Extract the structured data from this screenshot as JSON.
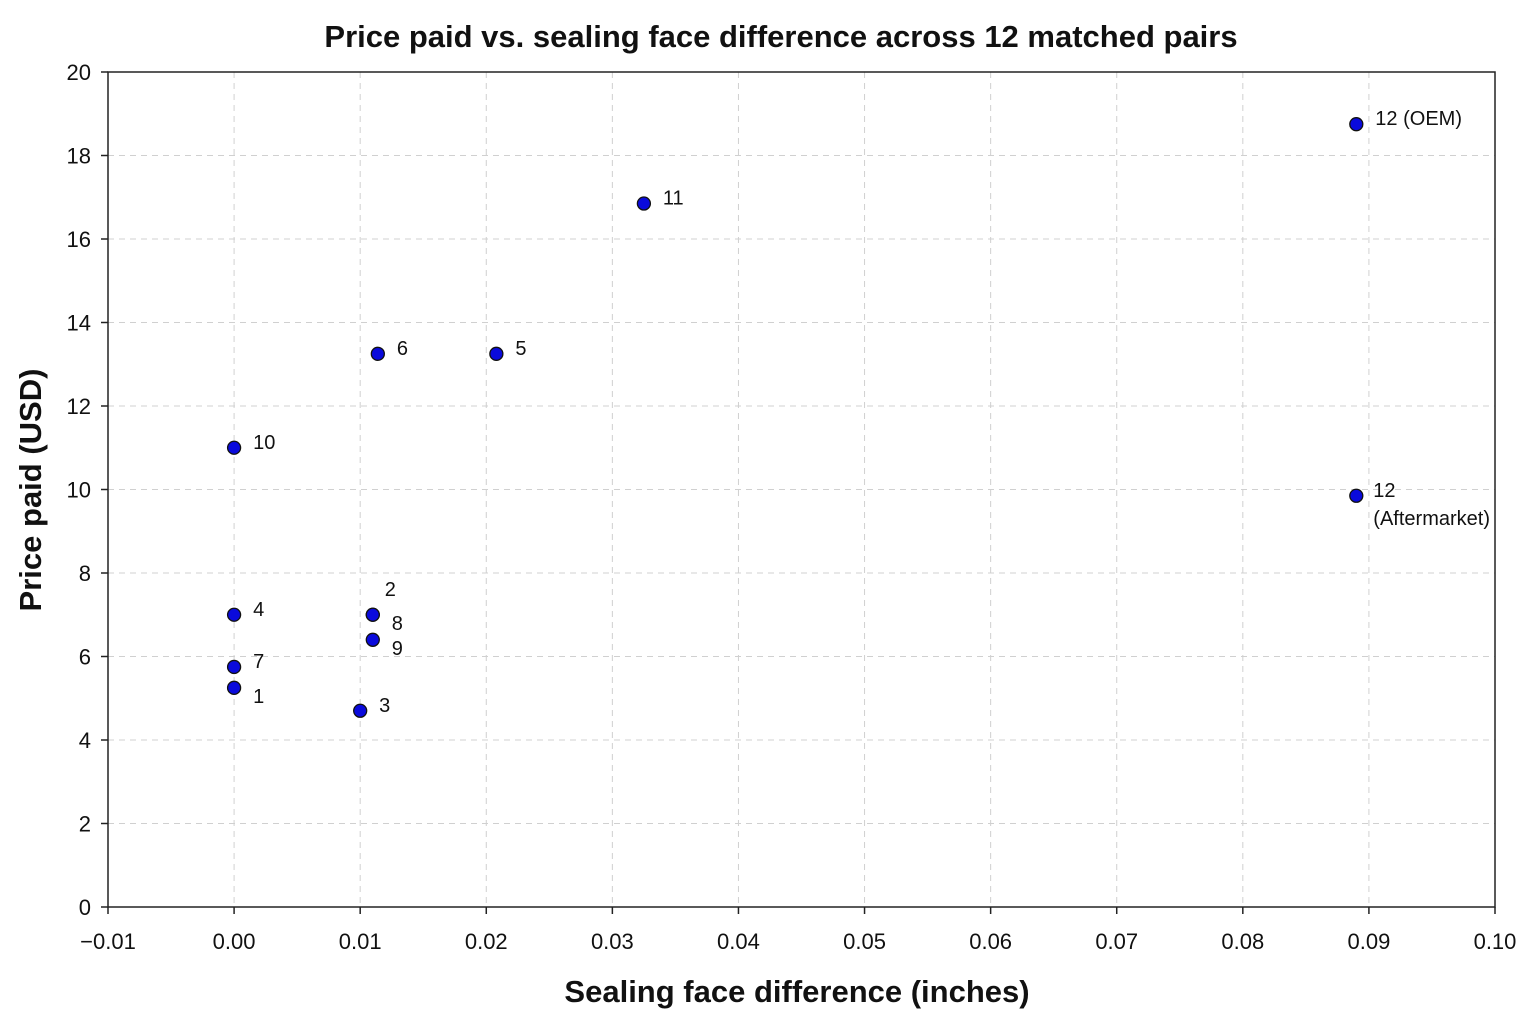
{
  "chart_data": {
    "type": "scatter",
    "title": "Price paid vs. sealing face difference across 12 matched pairs",
    "xlabel": "Sealing face difference (inches)",
    "ylabel": "Price paid (USD)",
    "xlim": [
      -0.01,
      0.1
    ],
    "ylim": [
      0,
      20
    ],
    "x_ticks": [
      -0.01,
      0.0,
      0.01,
      0.02,
      0.03,
      0.04,
      0.05,
      0.06,
      0.07,
      0.08,
      0.09,
      0.1
    ],
    "x_tick_labels": [
      "−0.01",
      "0.00",
      "0.01",
      "0.02",
      "0.03",
      "0.04",
      "0.05",
      "0.06",
      "0.07",
      "0.08",
      "0.09",
      "0.10"
    ],
    "y_ticks": [
      0,
      2,
      4,
      6,
      8,
      10,
      12,
      14,
      16,
      18,
      20
    ],
    "y_tick_labels": [
      "0",
      "2",
      "4",
      "6",
      "8",
      "10",
      "12",
      "14",
      "16",
      "18",
      "20"
    ],
    "grid": true,
    "marker_color": "#0a0adc",
    "points": [
      {
        "label": [
          "1"
        ],
        "x": 0.0,
        "y": 5.25,
        "anchor": "below-right"
      },
      {
        "label": [
          "2"
        ],
        "x": 0.011,
        "y": 7.0,
        "anchor": "above-right"
      },
      {
        "label": [
          "3"
        ],
        "x": 0.01,
        "y": 4.7,
        "anchor": "right"
      },
      {
        "label": [
          "4"
        ],
        "x": 0.0,
        "y": 7.0,
        "anchor": "right"
      },
      {
        "label": [
          "5"
        ],
        "x": 0.0208,
        "y": 13.25,
        "anchor": "right"
      },
      {
        "label": [
          "6"
        ],
        "x": 0.0114,
        "y": 13.25,
        "anchor": "right"
      },
      {
        "label": [
          "7"
        ],
        "x": 0.0,
        "y": 5.75,
        "anchor": "right"
      },
      {
        "label": [
          "8"
        ],
        "x": 0.011,
        "y": 7.0,
        "anchor": "below-right"
      },
      {
        "label": [
          "9"
        ],
        "x": 0.011,
        "y": 6.4,
        "anchor": "below-right"
      },
      {
        "label": [
          "10"
        ],
        "x": 0.0,
        "y": 11.0,
        "anchor": "right"
      },
      {
        "label": [
          "11"
        ],
        "x": 0.0325,
        "y": 16.85,
        "anchor": "right"
      },
      {
        "label": [
          "12 (OEM)"
        ],
        "x": 0.089,
        "y": 18.75,
        "anchor": "right"
      },
      {
        "label": [
          "12",
          "(Aftermarket)"
        ],
        "x": 0.089,
        "y": 9.85,
        "anchor": "right-two-line"
      }
    ]
  }
}
